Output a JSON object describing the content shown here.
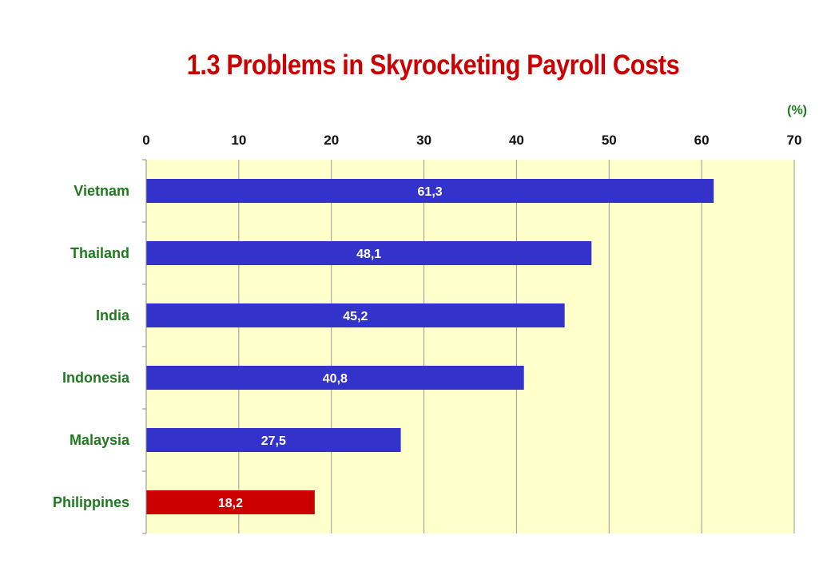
{
  "colors": {
    "title": "#cc0000",
    "label_text": "#1f7a1f",
    "plot_background": "#ffffcc",
    "bar_default": "#3333cc",
    "bar_highlight": "#cc0000",
    "gridline": "#9a9a9a"
  },
  "chart_data": {
    "type": "bar",
    "orientation": "horizontal",
    "title": "1.3 Problems in Skyrocketing Payroll Costs",
    "unit_label": "(%)",
    "categories": [
      "Vietnam",
      "Thailand",
      "India",
      "Indonesia",
      "Malaysia",
      "Philippines"
    ],
    "values": [
      61.3,
      48.1,
      45.2,
      40.8,
      27.5,
      18.2
    ],
    "data_labels": [
      "61,3",
      "48,1",
      "45,2",
      "40,8",
      "27,5",
      "18,2"
    ],
    "highlight_category": "Philippines",
    "xlim": [
      0,
      70
    ],
    "x_ticks": [
      0,
      10,
      20,
      30,
      40,
      50,
      60,
      70
    ],
    "x_axis_position": "top",
    "grid": true,
    "legend": "none"
  }
}
